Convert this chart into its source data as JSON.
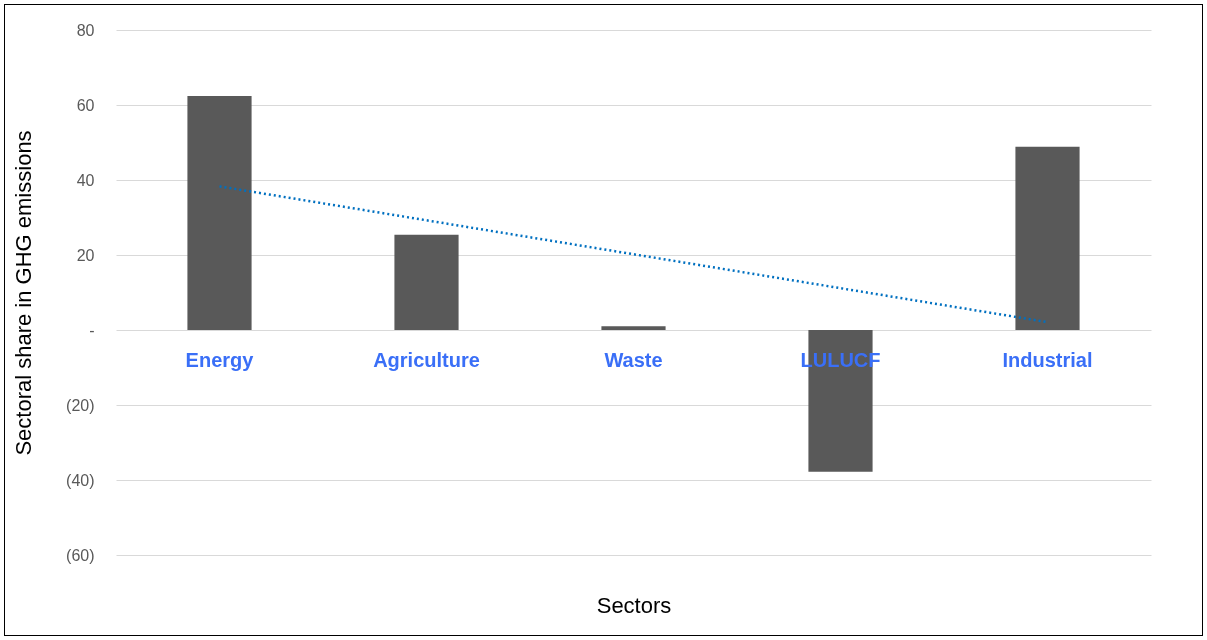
{
  "chart_data": {
    "type": "bar",
    "xlabel": "Sectors",
    "ylabel": "Sectoral share in GHG emissions",
    "categories": [
      "Energy",
      "Agriculture",
      "Waste",
      "LULUCF",
      "Industrial"
    ],
    "series": [
      {
        "color": "#595959",
        "values": [
          62.4,
          25.4,
          1.0,
          -37.8,
          48.9
        ]
      },
      {
        "type": "line",
        "color": "#0070c0",
        "line_style": "dotted",
        "x": [
          "Energy",
          "Industrial"
        ],
        "values": [
          38.3,
          2.1
        ]
      }
    ],
    "ylim": [
      -60,
      80
    ],
    "yticks": [
      {
        "value": -60,
        "label": "(60)"
      },
      {
        "value": -40,
        "label": "(40)"
      },
      {
        "value": -20,
        "label": "(20)"
      },
      {
        "value": 0,
        "label": "-"
      },
      20,
      40,
      60,
      80
    ],
    "grid": "y"
  }
}
